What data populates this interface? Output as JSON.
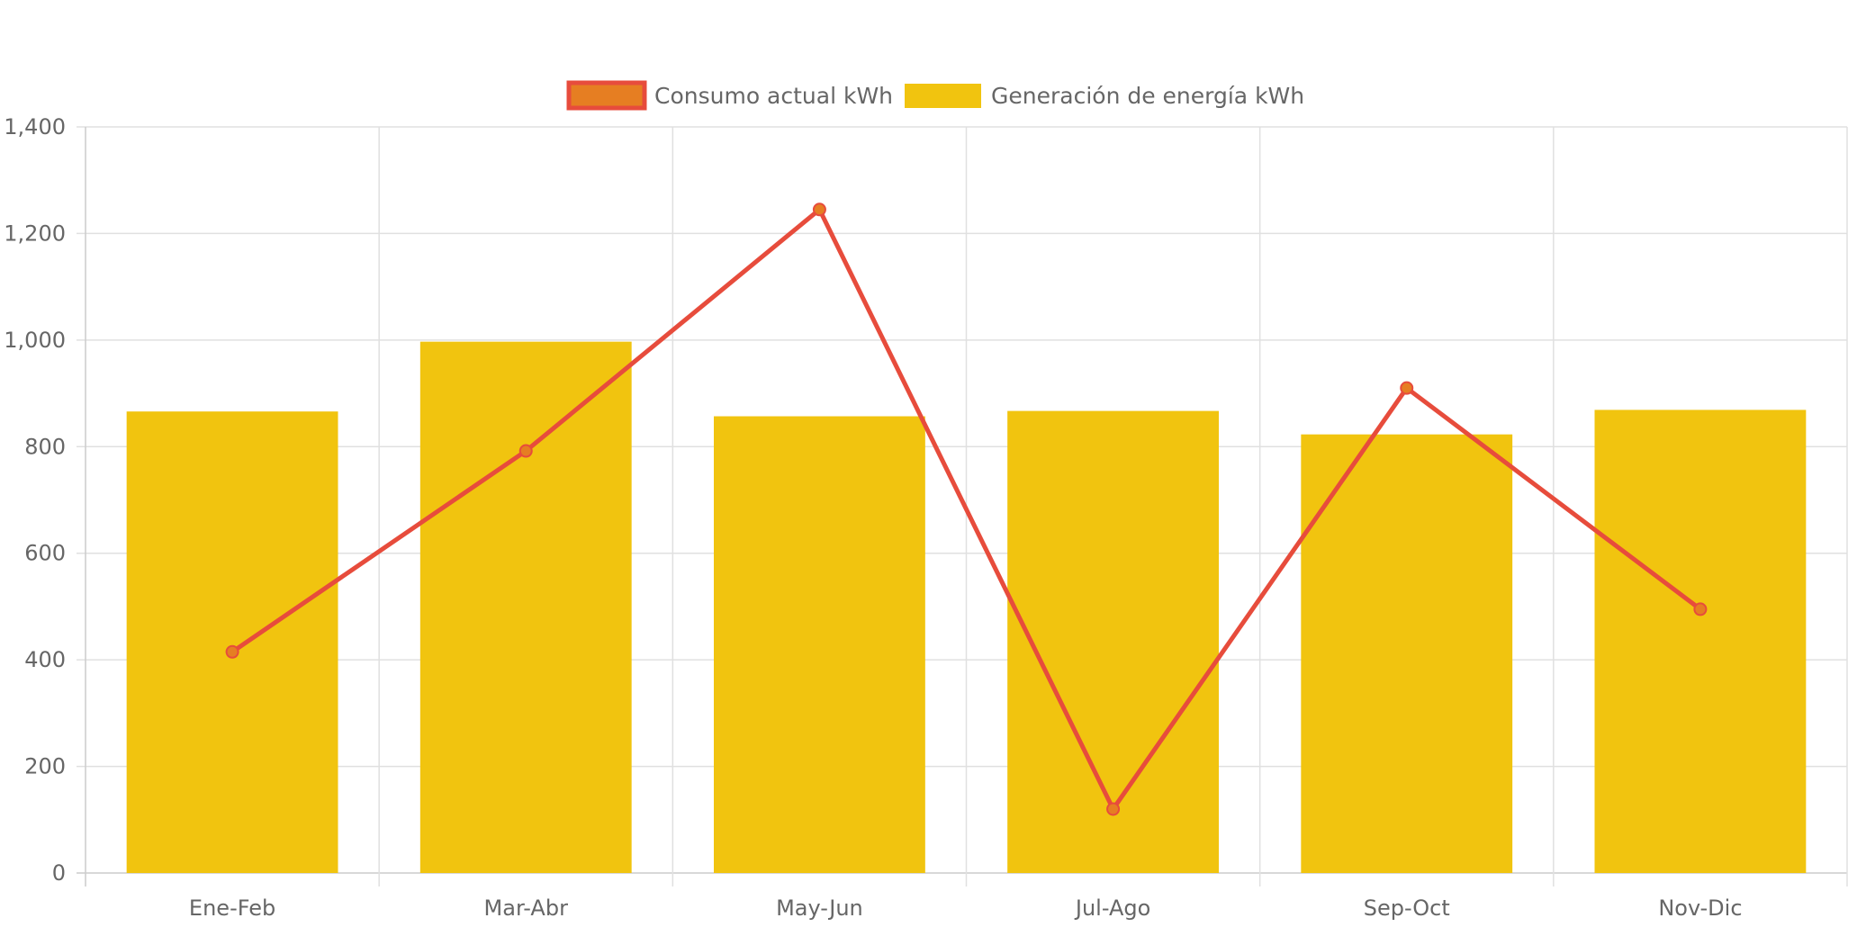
{
  "chart_data": {
    "type": "bar",
    "categories": [
      "Ene-Feb",
      "Mar-Abr",
      "May-Jun",
      "Jul-Ago",
      "Sep-Oct",
      "Nov-Dic"
    ],
    "series": [
      {
        "name": "Generación de energía kWh",
        "type": "bar",
        "values": [
          866,
          997,
          857,
          867,
          823,
          869
        ],
        "color": "#f1c40f"
      },
      {
        "name": "Consumo actual kWh",
        "type": "line",
        "values": [
          415,
          792,
          1245,
          120,
          910,
          495
        ],
        "color": "#e74c3c",
        "point_color": "#e67e22"
      }
    ],
    "legend_order": [
      1,
      0
    ],
    "ylim": [
      0,
      1400
    ],
    "yticks": [
      0,
      200,
      400,
      600,
      800,
      1000,
      1200,
      1400
    ],
    "ytick_labels": [
      "0",
      "200",
      "400",
      "600",
      "800",
      "1,000",
      "1,200",
      "1,400"
    ],
    "grid": true,
    "legend_position": "top-center",
    "colors": {
      "grid": "#e0e0e0",
      "axis": "#cccccc",
      "text": "#666666"
    }
  }
}
